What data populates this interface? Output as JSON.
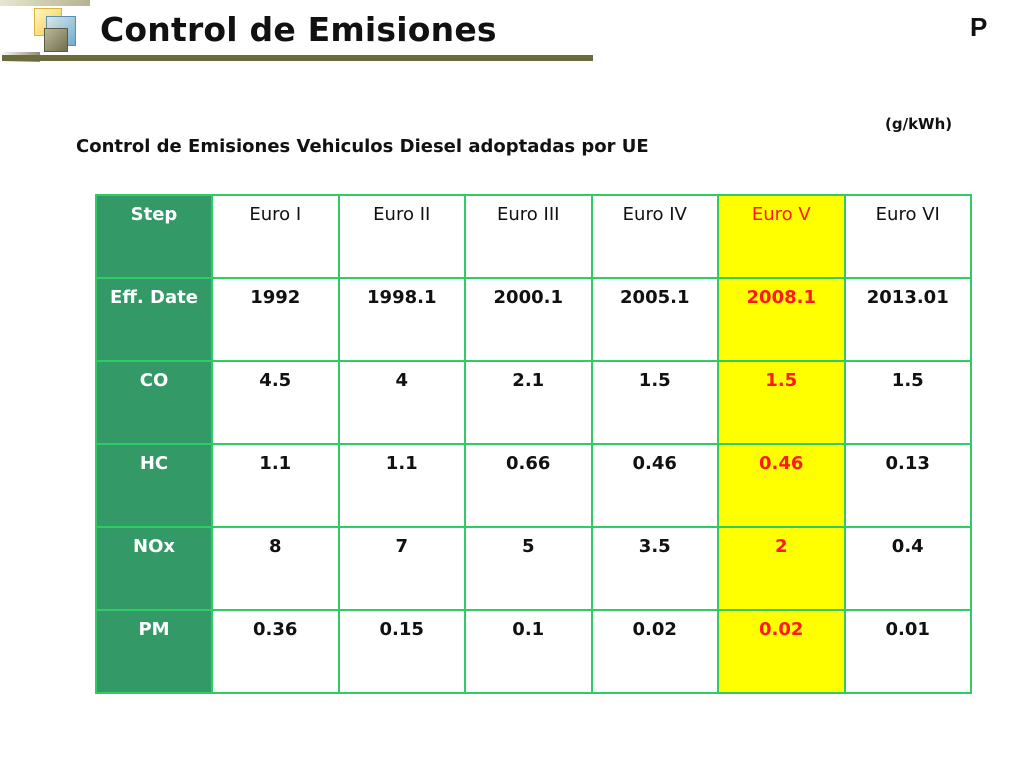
{
  "header": {
    "title": "Control de Emisiones",
    "corner_mark": "P"
  },
  "unit_label": "(g/kWh)",
  "subtitle": "Control de Emisiones Vehiculos Diesel adoptadas por UE",
  "colors": {
    "header_col_bg": "#339966",
    "highlight_bg": "#ffff00",
    "highlight_text": "#ff1a1a",
    "grid_border": "#2ecc63",
    "title_rule": "#6b6b3d"
  },
  "table": {
    "highlight_column": "Euro V",
    "rows": [
      [
        "Step",
        "Euro I",
        "Euro II",
        "Euro III",
        "Euro IV",
        "Euro V",
        "Euro VI"
      ],
      [
        "Eff. Date",
        "1992",
        "1998.1",
        "2000.1",
        "2005.1",
        "2008.1",
        "2013.01"
      ],
      [
        "CO",
        "4.5",
        "4",
        "2.1",
        "1.5",
        "1.5",
        "1.5"
      ],
      [
        "HC",
        "1.1",
        "1.1",
        "0.66",
        "0.46",
        "0.46",
        "0.13"
      ],
      [
        "NOx",
        "8",
        "7",
        "5",
        "3.5",
        "2",
        "0.4"
      ],
      [
        "PM",
        "0.36",
        "0.15",
        "0.1",
        "0.02",
        "0.02",
        "0.01"
      ]
    ]
  }
}
